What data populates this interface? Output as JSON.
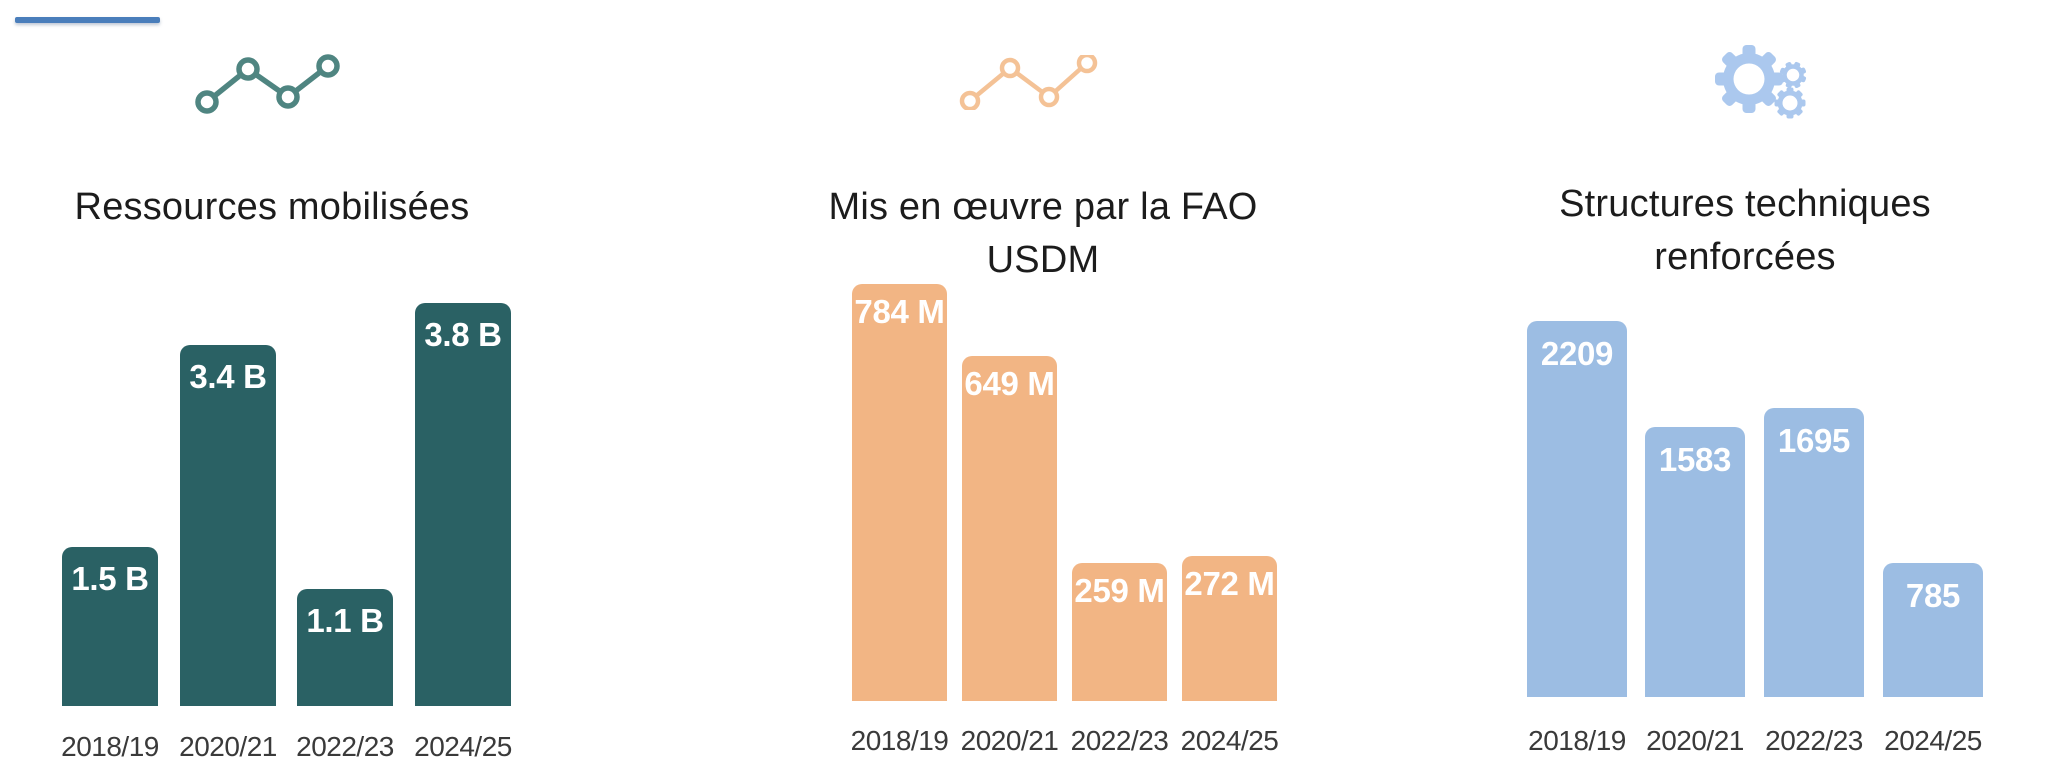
{
  "canvas": {
    "background": "#FFFFFF"
  },
  "accent_line": {
    "color": "#4A7EBB"
  },
  "chart_data": [
    {
      "type": "bar",
      "title": "Ressources mobilisées",
      "icon": "line-chart-icon",
      "bar_color": "#2A6164",
      "icon_color": "#4F8581",
      "value_label_color": "#FFFFFF",
      "grid": false,
      "value_labels_position": "inside-top",
      "categories": [
        "2018/19",
        "2020/21",
        "2022/23",
        "2024/25"
      ],
      "values": [
        1.5,
        3.4,
        1.1,
        3.8
      ],
      "value_labels": [
        "1.5 B",
        "3.4 B",
        "1.1 B",
        "3.8 B"
      ]
    },
    {
      "type": "bar",
      "title": "Mis en œuvre par la FAO USDM",
      "icon": "line-chart-icon",
      "bar_color": "#F2B584",
      "icon_color": "#F4C296",
      "value_label_color": "#FFFFFF",
      "grid": false,
      "value_labels_position": "inside-top",
      "categories": [
        "2018/19",
        "2020/21",
        "2022/23",
        "2024/25"
      ],
      "values": [
        784,
        649,
        259,
        272
      ],
      "value_labels": [
        "784 M",
        "649 M",
        "259 M",
        "272 M"
      ]
    },
    {
      "type": "bar",
      "title": "Structures techniques renforcées",
      "title_lines": [
        "Structures techniques",
        "renforcées"
      ],
      "icon": "gears-icon",
      "bar_color": "#9CBDE3",
      "icon_color": "#ABC8EE",
      "value_label_color": "#FFFFFF",
      "grid": false,
      "value_labels_position": "inside-top",
      "categories": [
        "2018/19",
        "2020/21",
        "2022/23",
        "2024/25"
      ],
      "values": [
        2209,
        1583,
        1695,
        785
      ],
      "value_labels": [
        "2209",
        "1583",
        "1695",
        "785"
      ]
    }
  ]
}
